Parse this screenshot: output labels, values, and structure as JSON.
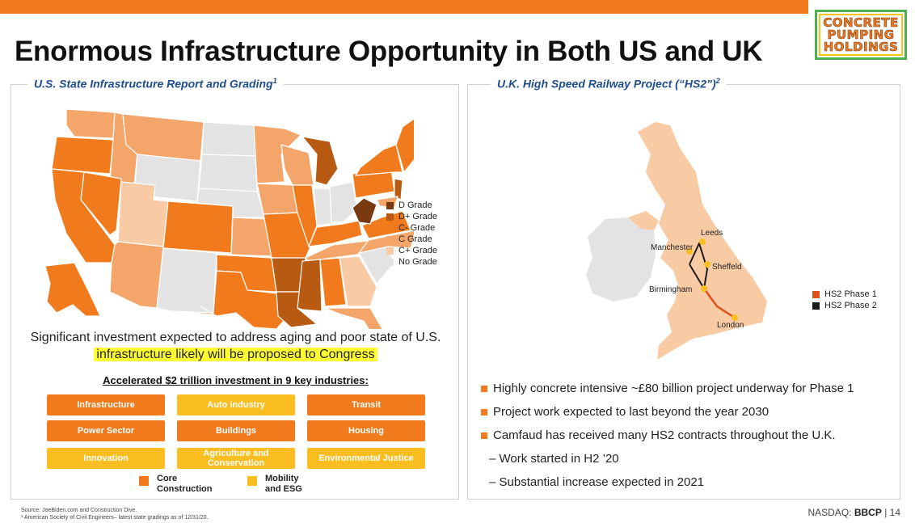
{
  "header": {
    "title": "Enormous Infrastructure Opportunity in Both US and UK",
    "logo_lines": [
      "CONCRETE",
      "PUMPING",
      "HOLDINGS"
    ]
  },
  "left_panel": {
    "title": "U.S. State Infrastructure Report and Grading",
    "title_sup": "1",
    "legend": [
      {
        "label": "D Grade",
        "color": "#7a3a10"
      },
      {
        "label": "D+ Grade",
        "color": "#b85a12"
      },
      {
        "label": "C- Grade",
        "color": "#f07a1c"
      },
      {
        "label": "C  Grade",
        "color": "#f4a56a"
      },
      {
        "label": "C+ Grade",
        "color": "#f8cba5"
      },
      {
        "label": "No Grade",
        "color": "#e3e3e3"
      }
    ],
    "statement_line1": "Significant investment expected to address aging and poor state of U.S.",
    "statement_line2": "infrastructure likely will be proposed to Congress",
    "subhead": "Accelerated $2 trillion investment in 9 key industries:",
    "industries": [
      {
        "label": "Infrastructure",
        "type": "core"
      },
      {
        "label": "Auto industry",
        "type": "mobility"
      },
      {
        "label": "Transit",
        "type": "core"
      },
      {
        "label": "Power Sector",
        "type": "core"
      },
      {
        "label": "Buildings",
        "type": "core"
      },
      {
        "label": "Housing",
        "type": "core"
      },
      {
        "label": "Innovation",
        "type": "mobility"
      },
      {
        "label": "Agriculture and Conservation",
        "type": "mobility"
      },
      {
        "label": "Environmental Justice",
        "type": "mobility"
      }
    ],
    "key_core": "Core Construction",
    "key_mobility": "Mobility and ESG",
    "colors": {
      "core": "#f07a1c",
      "mobility": "#fbbe20"
    }
  },
  "right_panel": {
    "title": "U.K. High Speed Railway Project (“HS2”)",
    "title_sup": "2",
    "cities": [
      "Leeds",
      "Manchester",
      "Sheffeld",
      "Birmingham",
      "London"
    ],
    "legend": [
      {
        "label": "HS2 Phase 1",
        "color": "#e0501a"
      },
      {
        "label": "HS2 Phase 2",
        "color": "#1a1a1a"
      }
    ],
    "bullets": [
      {
        "text": "Highly concrete intensive ~£80 billion project underway for Phase 1",
        "level": 1
      },
      {
        "text": "Project work expected to last beyond the year 2030",
        "level": 1
      },
      {
        "text": "Camfaud has received many HS2 contracts throughout the U.K.",
        "level": 1
      },
      {
        "text": "– Work started in H2 ’20",
        "level": 2
      },
      {
        "text": "– Substantial increase expected in 2021",
        "level": 2
      }
    ]
  },
  "footer": {
    "source": "Source: JoeBiden.com and Construction Dive.",
    "note": "¹ American Society of Civil Engineers– latest state gradings as of 12/31/20.",
    "ticker_prefix": "NASDAQ: ",
    "ticker": "BBCP",
    "page": "| 14"
  }
}
